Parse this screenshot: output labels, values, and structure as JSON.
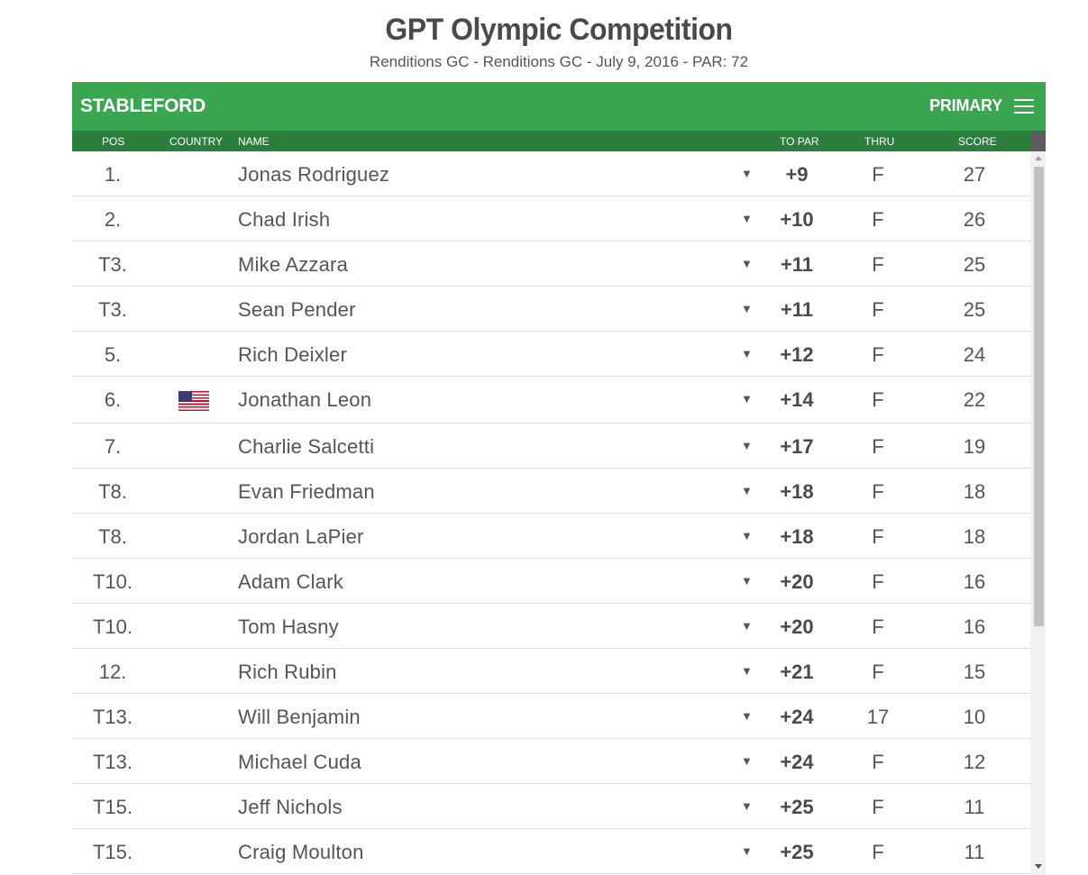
{
  "header": {
    "title": "GPT Olympic Competition",
    "subtitle": "Renditions GC - Renditions GC - July 9, 2016 - PAR: 72"
  },
  "toolbar": {
    "format_label": "STABLEFORD",
    "view_label": "PRIMARY",
    "menu_icon": "hamburger-menu-icon"
  },
  "columns": {
    "pos": "POS",
    "country": "COUNTRY",
    "name": "NAME",
    "to_par": "TO PAR",
    "thru": "THRU",
    "score": "SCORE"
  },
  "rows": [
    {
      "pos": "1.",
      "country": "",
      "name": "Jonas Rodriguez",
      "caret": "▼",
      "to_par": "+9",
      "thru": "F",
      "score": "27"
    },
    {
      "pos": "2.",
      "country": "",
      "name": "Chad Irish",
      "caret": "▼",
      "to_par": "+10",
      "thru": "F",
      "score": "26"
    },
    {
      "pos": "T3.",
      "country": "",
      "name": "Mike Azzara",
      "caret": "▼",
      "to_par": "+11",
      "thru": "F",
      "score": "25"
    },
    {
      "pos": "T3.",
      "country": "",
      "name": "Sean Pender",
      "caret": "▼",
      "to_par": "+11",
      "thru": "F",
      "score": "25"
    },
    {
      "pos": "5.",
      "country": "",
      "name": "Rich Deixler",
      "caret": "▼",
      "to_par": "+12",
      "thru": "F",
      "score": "24"
    },
    {
      "pos": "6.",
      "country": "us-flag-icon",
      "name": "Jonathan Leon",
      "caret": "▼",
      "to_par": "+14",
      "thru": "F",
      "score": "22"
    },
    {
      "pos": "7.",
      "country": "",
      "name": "Charlie Salcetti",
      "caret": "▼",
      "to_par": "+17",
      "thru": "F",
      "score": "19"
    },
    {
      "pos": "T8.",
      "country": "",
      "name": "Evan Friedman",
      "caret": "▼",
      "to_par": "+18",
      "thru": "F",
      "score": "18"
    },
    {
      "pos": "T8.",
      "country": "",
      "name": "Jordan LaPier",
      "caret": "▼",
      "to_par": "+18",
      "thru": "F",
      "score": "18"
    },
    {
      "pos": "T10.",
      "country": "",
      "name": "Adam Clark",
      "caret": "▼",
      "to_par": "+20",
      "thru": "F",
      "score": "16"
    },
    {
      "pos": "T10.",
      "country": "",
      "name": "Tom Hasny",
      "caret": "▼",
      "to_par": "+20",
      "thru": "F",
      "score": "16"
    },
    {
      "pos": "12.",
      "country": "",
      "name": "Rich Rubin",
      "caret": "▼",
      "to_par": "+21",
      "thru": "F",
      "score": "15"
    },
    {
      "pos": "T13.",
      "country": "",
      "name": "Will Benjamin",
      "caret": "▼",
      "to_par": "+24",
      "thru": "17",
      "score": "10"
    },
    {
      "pos": "T13.",
      "country": "",
      "name": "Michael Cuda",
      "caret": "▼",
      "to_par": "+24",
      "thru": "F",
      "score": "12"
    },
    {
      "pos": "T15.",
      "country": "",
      "name": "Jeff Nichols",
      "caret": "▼",
      "to_par": "+25",
      "thru": "F",
      "score": "11"
    },
    {
      "pos": "T15.",
      "country": "",
      "name": "Craig Moulton",
      "caret": "▼",
      "to_par": "+25",
      "thru": "F",
      "score": "11"
    }
  ],
  "colors": {
    "bar_green": "#3aa64f",
    "header_dark_green": "#2b7e3c"
  }
}
